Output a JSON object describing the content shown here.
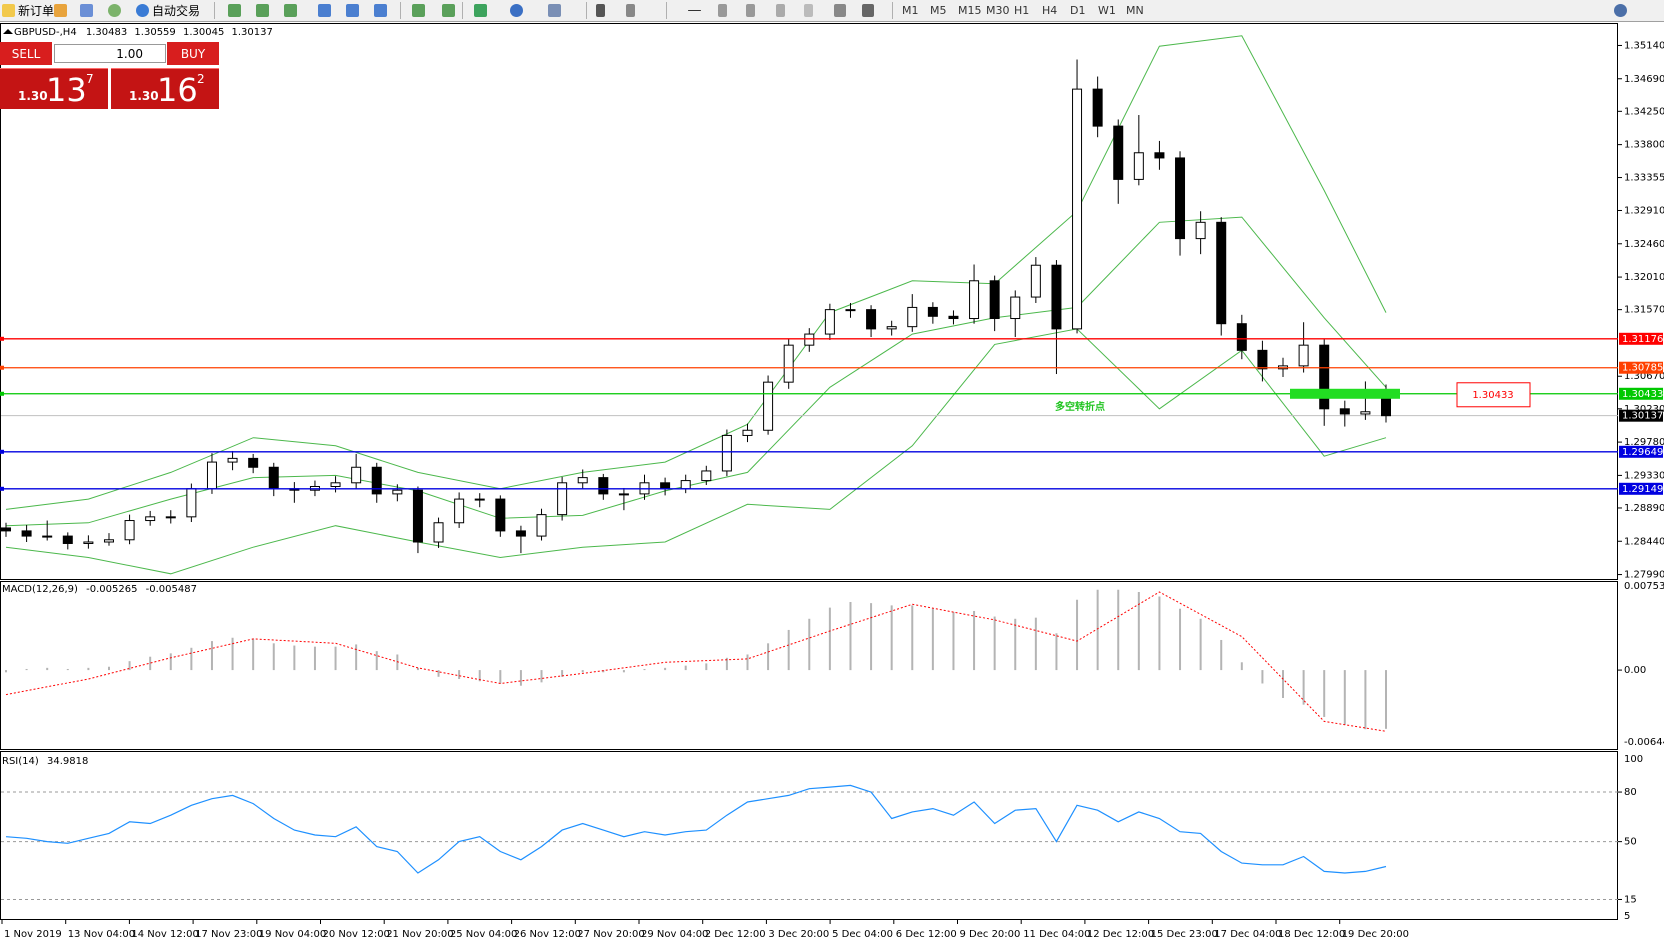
{
  "toolbar": {
    "new_order": "新订单",
    "auto_trading": "自动交易",
    "timeframes": [
      "M1",
      "M5",
      "M15",
      "M30",
      "H1",
      "H4",
      "D1",
      "W1",
      "MN"
    ]
  },
  "trade_panel": {
    "sell": "SELL",
    "buy": "BUY",
    "volume": "1.00",
    "bid": {
      "prefix": "1.30",
      "big": "13",
      "sup": "7"
    },
    "ask": {
      "prefix": "1.30",
      "big": "16",
      "sup": "2"
    }
  },
  "chart_data": [
    {
      "type": "candlestick",
      "title": "GBPUSD-,H4",
      "candles": [
        [
          1.2862,
          1.2869,
          1.285,
          1.2858
        ],
        [
          1.2858,
          1.2866,
          1.2843,
          1.2851
        ],
        [
          1.2851,
          1.2872,
          1.2845,
          1.2851
        ],
        [
          1.2851,
          1.2856,
          1.2833,
          1.2841
        ],
        [
          1.2841,
          1.2852,
          1.2834,
          1.2843
        ],
        [
          1.2843,
          1.2855,
          1.2838,
          1.2846
        ],
        [
          1.2846,
          1.288,
          1.284,
          1.2872
        ],
        [
          1.2872,
          1.2885,
          1.2865,
          1.2877
        ],
        [
          1.2877,
          1.2886,
          1.2868,
          1.2877
        ],
        [
          1.2877,
          1.2922,
          1.287,
          1.2915
        ],
        [
          1.2915,
          1.2963,
          1.2908,
          1.2951
        ],
        [
          1.2951,
          1.2966,
          1.294,
          1.2956
        ],
        [
          1.2956,
          1.2962,
          1.2936,
          1.2944
        ],
        [
          1.2944,
          1.295,
          1.2905,
          1.2915
        ],
        [
          1.2915,
          1.2924,
          1.2896,
          1.2913
        ],
        [
          1.2913,
          1.2926,
          1.2905,
          1.2918
        ],
        [
          1.2918,
          1.2932,
          1.291,
          1.2923
        ],
        [
          1.2923,
          1.2962,
          1.2915,
          1.2944
        ],
        [
          1.2944,
          1.295,
          1.2896,
          1.2908
        ],
        [
          1.2908,
          1.2921,
          1.2898,
          1.2913
        ],
        [
          1.2913,
          1.2918,
          1.2828,
          1.2843
        ],
        [
          1.2843,
          1.2876,
          1.2835,
          1.2869
        ],
        [
          1.2869,
          1.291,
          1.2862,
          1.2901
        ],
        [
          1.2901,
          1.2909,
          1.289,
          1.2901
        ],
        [
          1.2901,
          1.2906,
          1.285,
          1.2858
        ],
        [
          1.2858,
          1.2865,
          1.2828,
          1.2851
        ],
        [
          1.2851,
          1.2888,
          1.2845,
          1.288
        ],
        [
          1.288,
          1.2931,
          1.2872,
          1.2923
        ],
        [
          1.2923,
          1.2941,
          1.2915,
          1.293
        ],
        [
          1.293,
          1.2935,
          1.29,
          1.2908
        ],
        [
          1.2908,
          1.2916,
          1.2886,
          1.2908
        ],
        [
          1.2908,
          1.2934,
          1.29,
          1.2923
        ],
        [
          1.2923,
          1.293,
          1.2906,
          1.2915
        ],
        [
          1.2915,
          1.2934,
          1.2909,
          1.2926
        ],
        [
          1.2926,
          1.2946,
          1.292,
          1.2939
        ],
        [
          1.2939,
          1.2995,
          1.2932,
          1.2987
        ],
        [
          1.2987,
          1.3003,
          1.2978,
          1.2994
        ],
        [
          1.2994,
          1.3068,
          1.2988,
          1.3059
        ],
        [
          1.3059,
          1.3118,
          1.305,
          1.3109
        ],
        [
          1.3109,
          1.3132,
          1.31,
          1.3124
        ],
        [
          1.3124,
          1.3165,
          1.3116,
          1.3157
        ],
        [
          1.3157,
          1.3166,
          1.3146,
          1.3157
        ],
        [
          1.3157,
          1.3163,
          1.312,
          1.3131
        ],
        [
          1.3131,
          1.3142,
          1.3122,
          1.3134
        ],
        [
          1.3134,
          1.3178,
          1.3127,
          1.316
        ],
        [
          1.316,
          1.3167,
          1.3138,
          1.3148
        ],
        [
          1.3148,
          1.3156,
          1.3137,
          1.3145
        ],
        [
          1.3145,
          1.3218,
          1.3138,
          1.3196
        ],
        [
          1.3196,
          1.3203,
          1.3128,
          1.3145
        ],
        [
          1.3145,
          1.3183,
          1.312,
          1.3174
        ],
        [
          1.3174,
          1.3228,
          1.3166,
          1.3217
        ],
        [
          1.3217,
          1.3224,
          1.307,
          1.3131
        ],
        [
          1.3131,
          1.3495,
          1.3125,
          1.3455
        ],
        [
          1.3455,
          1.3472,
          1.339,
          1.3405
        ],
        [
          1.3405,
          1.3414,
          1.33,
          1.3333
        ],
        [
          1.3333,
          1.342,
          1.3325,
          1.3369
        ],
        [
          1.3369,
          1.3385,
          1.3346,
          1.3362
        ],
        [
          1.3362,
          1.3371,
          1.323,
          1.3253
        ],
        [
          1.3253,
          1.329,
          1.3232,
          1.3275
        ],
        [
          1.3275,
          1.3282,
          1.3122,
          1.3138
        ],
        [
          1.3138,
          1.315,
          1.309,
          1.3102
        ],
        [
          1.3102,
          1.3115,
          1.306,
          1.3077
        ],
        [
          1.3077,
          1.3092,
          1.3066,
          1.3081
        ],
        [
          1.3081,
          1.314,
          1.3072,
          1.3109
        ],
        [
          1.3109,
          1.3117,
          1.3,
          1.3023
        ],
        [
          1.3023,
          1.3034,
          1.2999,
          1.3016
        ],
        [
          1.3016,
          1.306,
          1.3008,
          1.3019
        ],
        [
          1.30483,
          1.30559,
          1.30045,
          1.30137
        ]
      ],
      "bands": {
        "color": "#4cb84c",
        "x": [
          0,
          4,
          8,
          12,
          16,
          20,
          24,
          28,
          32,
          36,
          40,
          44,
          48,
          52,
          56,
          60,
          64,
          67
        ],
        "upper": [
          1.2887,
          1.2901,
          1.2937,
          1.2984,
          1.2973,
          1.2937,
          1.2915,
          1.2937,
          1.2951,
          1.3002,
          1.3153,
          1.3196,
          1.3192,
          1.329,
          1.3513,
          1.3527,
          1.3318,
          1.3153
        ],
        "middle": [
          1.2865,
          1.2869,
          1.2901,
          1.293,
          1.2933,
          1.2912,
          1.2875,
          1.2879,
          1.2912,
          1.2937,
          1.3052,
          1.3124,
          1.3146,
          1.316,
          1.3275,
          1.3282,
          1.3146,
          1.3052
        ],
        "lower": [
          1.2836,
          1.2822,
          1.28,
          1.2836,
          1.2865,
          1.2843,
          1.2822,
          1.2836,
          1.2843,
          1.2894,
          1.2887,
          1.2973,
          1.311,
          1.3131,
          1.3023,
          1.3102,
          1.2959,
          1.2984
        ]
      },
      "ylim": [
        1.2793,
        1.3543
      ],
      "yticks": [
        {
          "value": 1.3514,
          "label": "1.35140"
        },
        {
          "value": 1.3469,
          "label": "1.34690"
        },
        {
          "value": 1.3425,
          "label": "1.34250"
        },
        {
          "value": 1.338,
          "label": "1.33800"
        },
        1.33355,
        {
          "value": 1.3291,
          "label": "1.32910"
        },
        {
          "value": 1.3246,
          "label": "1.32460"
        },
        {
          "value": 1.3201,
          "label": "1.32010"
        },
        {
          "value": 1.3157,
          "label": "1.31570"
        },
        {
          "value": 1.3067,
          "label": "1.30670"
        },
        {
          "value": 1.3023,
          "label": "1.30230"
        },
        {
          "value": 1.2978,
          "label": "1.29780"
        },
        {
          "value": 1.2933,
          "label": "1.29330"
        },
        {
          "value": 1.2889,
          "label": "1.28890"
        },
        {
          "value": 1.2844,
          "label": "1.28440"
        },
        {
          "value": 1.2799,
          "label": "1.27990"
        }
      ],
      "levels": [
        {
          "value": 1.31176,
          "color": "#ff0000"
        },
        {
          "value": 1.30785,
          "color": "#ff4000"
        },
        {
          "value": 1.30433,
          "color": "#00c800"
        },
        {
          "value": 1.29649,
          "color": "#0000e0"
        },
        {
          "value": 1.29149,
          "color": "#0000e0"
        }
      ],
      "annotation": "多空转折点",
      "time_labels": [
        "1 Nov 2019",
        "13 Nov 04:00",
        "14 Nov 12:00",
        "17 Nov 23:00",
        "19 Nov 04:00",
        "20 Nov 12:00",
        "21 Nov 20:00",
        "25 Nov 04:00",
        "26 Nov 12:00",
        "27 Nov 20:00",
        "29 Nov 04:00",
        "2 Dec 12:00",
        "3 Dec 20:00",
        "5 Dec 04:00",
        "6 Dec 12:00",
        "9 Dec 20:00",
        "11 Dec 04:00",
        "12 Dec 12:00",
        "15 Dec 23:00",
        "17 Dec 04:00",
        "18 Dec 12:00",
        "19 Dec 20:00"
      ]
    },
    {
      "type": "macd",
      "title": "MACD(12,26,9)",
      "histogram": {
        "color": "#b4b4b4",
        "values": [
          -0.0002,
          0.0001,
          0.0002,
          0.0001,
          0.0002,
          0.0003,
          0.0008,
          0.0012,
          0.0015,
          0.002,
          0.0026,
          0.0029,
          0.0028,
          0.0024,
          0.0022,
          0.0021,
          0.0021,
          0.0023,
          0.0017,
          0.0014,
          0.0002,
          -0.0006,
          -0.0008,
          -0.001,
          -0.0012,
          -0.0014,
          -0.0011,
          -0.0006,
          -0.0002,
          -0.0002,
          -0.0002,
          0.0001,
          0.0002,
          0.0004,
          0.0006,
          0.0011,
          0.0014,
          0.0024,
          0.0036,
          0.0046,
          0.0056,
          0.0061,
          0.006,
          0.0058,
          0.0058,
          0.0055,
          0.0052,
          0.0053,
          0.0048,
          0.0046,
          0.0047,
          0.0033,
          0.0063,
          0.0072,
          0.0072,
          0.007,
          0.0066,
          0.0055,
          0.0046,
          0.0027,
          0.0007,
          -0.0012,
          -0.0025,
          -0.0031,
          -0.0042,
          -0.0049,
          -0.0053,
          -0.005265
        ]
      },
      "signal": {
        "color": "#ff0000",
        "x": [
          0,
          4,
          8,
          12,
          16,
          20,
          24,
          28,
          32,
          36,
          40,
          44,
          48,
          52,
          56,
          60,
          64,
          67
        ],
        "values": [
          -0.0022,
          -0.0008,
          0.0011,
          0.0028,
          0.0024,
          0.0002,
          -0.0012,
          -0.0003,
          0.0007,
          0.001,
          0.0035,
          0.0059,
          0.0045,
          0.0026,
          0.007,
          0.003,
          -0.0046,
          -0.005487
        ]
      },
      "ylim": [
        -0.006446,
        0.007538
      ],
      "yticks": [
        {
          "value": 0,
          "label": "0.00"
        }
      ]
    },
    {
      "type": "line",
      "title": "RSI(14)",
      "color": "#1e90ff",
      "values": [
        53,
        52,
        50,
        49,
        52,
        55,
        62,
        61,
        66,
        72,
        76,
        78,
        73,
        64,
        57,
        54,
        53,
        59,
        47,
        44,
        31,
        39,
        50,
        53,
        44,
        39,
        47,
        57,
        61,
        57,
        53,
        56,
        54,
        56,
        57,
        66,
        74,
        76,
        78,
        82,
        83,
        84,
        80,
        64,
        68,
        70,
        66,
        74,
        61,
        69,
        70,
        50,
        72,
        69,
        62,
        68,
        64,
        56,
        55,
        44,
        37,
        36,
        36,
        41,
        32,
        31,
        32,
        34.9818
      ],
      "ylim": [
        5,
        100
      ],
      "yticks": [
        80,
        50,
        15
      ]
    }
  ]
}
